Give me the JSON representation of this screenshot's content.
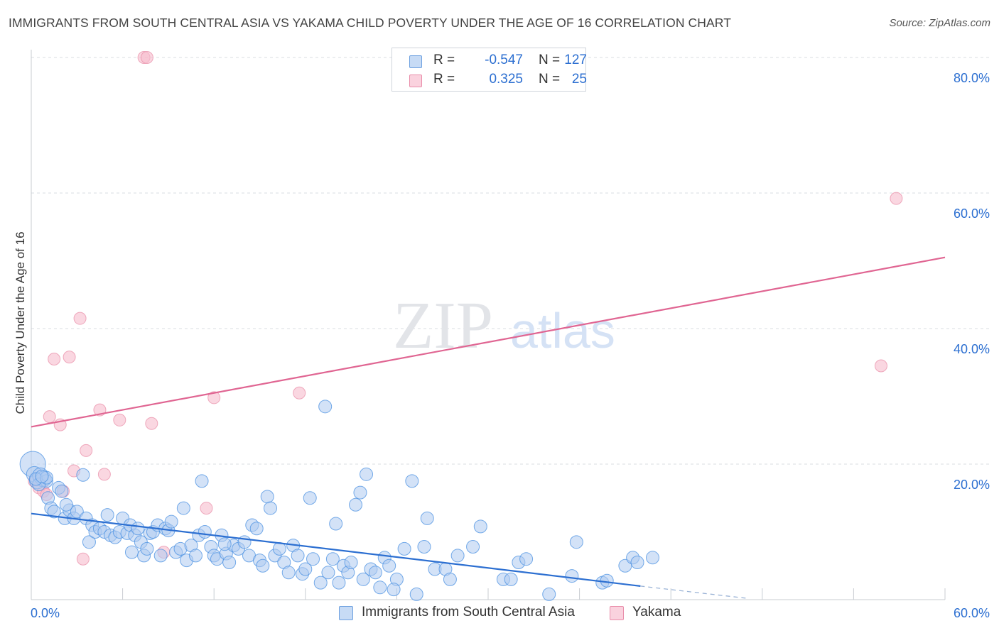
{
  "header": {
    "title": "IMMIGRANTS FROM SOUTH CENTRAL ASIA VS YAKAMA CHILD POVERTY UNDER THE AGE OF 16 CORRELATION CHART",
    "source": "Source: ZipAtlas.com"
  },
  "watermark": {
    "zip": "ZIP",
    "atlas": "atlas"
  },
  "stats_legend": [
    {
      "r_label": "R =",
      "r_value": "-0.547",
      "n_label": "N =",
      "n_value": "127",
      "color": "#aecbf1"
    },
    {
      "r_label": "R =",
      "r_value": "0.325",
      "n_label": "N =",
      "n_value": "25",
      "color": "#f7bccd"
    }
  ],
  "series_legend": [
    {
      "label": "Immigrants from South Central Asia",
      "color": "#aecbf1"
    },
    {
      "label": "Yakama",
      "color": "#f7bccd"
    }
  ],
  "chart_data": {
    "type": "scatter",
    "title": "IMMIGRANTS FROM SOUTH CENTRAL ASIA VS YAKAMA CHILD POVERTY UNDER THE AGE OF 16 CORRELATION CHART",
    "xlabel": "",
    "ylabel": "Child Poverty Under the Age of 16",
    "xlim": [
      0,
      60
    ],
    "ylim": [
      0,
      80
    ],
    "x_tick_labels": [
      "0.0%",
      "60.0%"
    ],
    "y_ticks": [
      20,
      40,
      60,
      80
    ],
    "y_tick_labels": [
      "20.0%",
      "40.0%",
      "60.0%",
      "80.0%"
    ],
    "grid": true,
    "series": [
      {
        "name": "Immigrants from South Central Asia",
        "color": "#4a90e2",
        "fill": "#aecbf1",
        "trend": {
          "x0": 0,
          "y0": 12.7,
          "x1": 40,
          "y1": 2.0,
          "dashed_to_x": 47,
          "dashed_to_y": 0.2,
          "color": "#2c6fd1"
        },
        "points": [
          [
            0.1,
            20.0
          ],
          [
            0.2,
            18.5
          ],
          [
            0.4,
            17.5
          ],
          [
            0.6,
            18.3
          ],
          [
            0.8,
            17.8
          ],
          [
            1.0,
            17.5
          ],
          [
            1.1,
            15.0
          ],
          [
            1.3,
            13.5
          ],
          [
            1.5,
            13.0
          ],
          [
            1.8,
            16.5
          ],
          [
            2.0,
            16.0
          ],
          [
            2.2,
            12.0
          ],
          [
            2.5,
            13.2
          ],
          [
            2.8,
            12.0
          ],
          [
            3.0,
            13.0
          ],
          [
            3.4,
            18.4
          ],
          [
            3.6,
            12.0
          ],
          [
            3.8,
            8.5
          ],
          [
            4.0,
            11.0
          ],
          [
            4.2,
            10.0
          ],
          [
            4.5,
            10.5
          ],
          [
            4.8,
            10.0
          ],
          [
            5.0,
            12.5
          ],
          [
            5.2,
            9.5
          ],
          [
            5.5,
            9.2
          ],
          [
            5.8,
            10.0
          ],
          [
            6.0,
            12.0
          ],
          [
            6.3,
            9.8
          ],
          [
            6.5,
            11.0
          ],
          [
            6.8,
            9.5
          ],
          [
            7.0,
            10.5
          ],
          [
            7.2,
            8.5
          ],
          [
            7.4,
            6.5
          ],
          [
            7.6,
            7.5
          ],
          [
            7.8,
            9.8
          ],
          [
            8.0,
            10.0
          ],
          [
            8.3,
            11.0
          ],
          [
            8.5,
            6.5
          ],
          [
            8.8,
            10.5
          ],
          [
            9.0,
            10.2
          ],
          [
            9.2,
            11.5
          ],
          [
            9.5,
            7.0
          ],
          [
            9.8,
            7.5
          ],
          [
            10.0,
            13.5
          ],
          [
            10.2,
            5.8
          ],
          [
            10.5,
            8.0
          ],
          [
            10.8,
            6.5
          ],
          [
            11.0,
            9.5
          ],
          [
            11.2,
            17.5
          ],
          [
            11.4,
            10.0
          ],
          [
            11.8,
            7.8
          ],
          [
            12.0,
            6.5
          ],
          [
            12.2,
            6.0
          ],
          [
            12.5,
            9.5
          ],
          [
            12.8,
            6.8
          ],
          [
            13.0,
            5.5
          ],
          [
            13.3,
            8.0
          ],
          [
            13.6,
            7.5
          ],
          [
            14.0,
            8.5
          ],
          [
            14.3,
            6.5
          ],
          [
            14.5,
            11.0
          ],
          [
            14.8,
            10.5
          ],
          [
            15.0,
            5.8
          ],
          [
            15.2,
            5.0
          ],
          [
            15.5,
            15.2
          ],
          [
            15.7,
            13.5
          ],
          [
            16.0,
            6.5
          ],
          [
            16.3,
            7.5
          ],
          [
            16.6,
            5.5
          ],
          [
            16.9,
            4.0
          ],
          [
            17.2,
            8.0
          ],
          [
            17.5,
            6.5
          ],
          [
            17.8,
            3.8
          ],
          [
            18.0,
            4.5
          ],
          [
            18.3,
            15.0
          ],
          [
            18.5,
            6.0
          ],
          [
            19.0,
            2.5
          ],
          [
            19.5,
            4.0
          ],
          [
            19.8,
            6.0
          ],
          [
            20.0,
            11.2
          ],
          [
            20.2,
            2.5
          ],
          [
            20.5,
            5.0
          ],
          [
            20.8,
            4.0
          ],
          [
            21.0,
            5.5
          ],
          [
            21.3,
            14.0
          ],
          [
            21.6,
            15.8
          ],
          [
            21.8,
            3.0
          ],
          [
            22.0,
            18.5
          ],
          [
            22.3,
            4.5
          ],
          [
            22.6,
            4.0
          ],
          [
            22.9,
            1.8
          ],
          [
            23.2,
            6.2
          ],
          [
            23.5,
            5.0
          ],
          [
            24.0,
            3.0
          ],
          [
            24.5,
            7.5
          ],
          [
            25.0,
            17.5
          ],
          [
            25.3,
            0.8
          ],
          [
            25.8,
            7.8
          ],
          [
            26.0,
            12.0
          ],
          [
            26.5,
            4.5
          ],
          [
            27.2,
            4.5
          ],
          [
            27.5,
            3.0
          ],
          [
            28.0,
            6.5
          ],
          [
            29.0,
            7.8
          ],
          [
            29.5,
            10.8
          ],
          [
            31.0,
            3.0
          ],
          [
            31.5,
            3.0
          ],
          [
            32.0,
            5.5
          ],
          [
            32.5,
            6.0
          ],
          [
            34.0,
            0.8
          ],
          [
            35.5,
            3.5
          ],
          [
            35.8,
            8.5
          ],
          [
            37.5,
            2.5
          ],
          [
            37.8,
            2.8
          ],
          [
            39.0,
            5.0
          ],
          [
            39.5,
            6.2
          ],
          [
            39.8,
            5.5
          ],
          [
            40.8,
            6.2
          ],
          [
            0.5,
            17.0
          ],
          [
            0.3,
            17.8
          ],
          [
            1.0,
            18.0
          ],
          [
            2.3,
            14.0
          ],
          [
            0.7,
            18.2
          ],
          [
            19.3,
            28.5
          ],
          [
            6.6,
            7.0
          ],
          [
            23.8,
            1.5
          ],
          [
            12.7,
            8.2
          ]
        ]
      },
      {
        "name": "Yakama",
        "color": "#e88aa5",
        "fill": "#f7bccd",
        "trend": {
          "x0": 0,
          "y0": 25.5,
          "x1": 60,
          "y1": 50.5,
          "color": "#e06592"
        },
        "points": [
          [
            0.2,
            17.5
          ],
          [
            0.5,
            16.5
          ],
          [
            0.8,
            16.0
          ],
          [
            1.0,
            15.5
          ],
          [
            1.2,
            27.0
          ],
          [
            1.5,
            35.5
          ],
          [
            1.9,
            25.8
          ],
          [
            2.1,
            16.0
          ],
          [
            2.5,
            35.8
          ],
          [
            2.8,
            19.0
          ],
          [
            3.2,
            41.5
          ],
          [
            3.4,
            6.0
          ],
          [
            3.6,
            22.0
          ],
          [
            4.5,
            28.0
          ],
          [
            4.8,
            18.5
          ],
          [
            5.8,
            26.5
          ],
          [
            7.4,
            80.0
          ],
          [
            7.6,
            80.0
          ],
          [
            7.9,
            26.0
          ],
          [
            8.7,
            7.0
          ],
          [
            11.5,
            13.5
          ],
          [
            12.0,
            29.8
          ],
          [
            17.6,
            30.5
          ],
          [
            55.8,
            34.5
          ],
          [
            56.8,
            59.2
          ]
        ]
      }
    ]
  }
}
